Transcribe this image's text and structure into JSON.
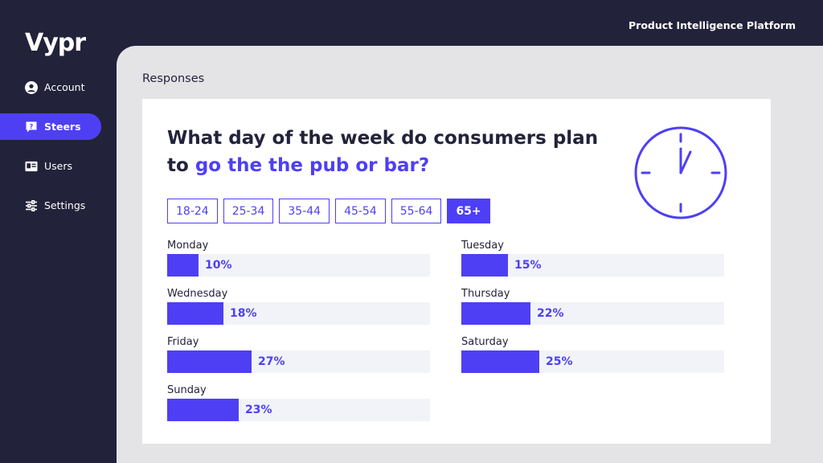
{
  "app": {
    "logo_text": "Vypr",
    "platform_title": "Product Intelligence Platform"
  },
  "sidebar": {
    "items": [
      {
        "label": "Account",
        "icon": "user-circle-icon",
        "active": false
      },
      {
        "label": "Steers",
        "icon": "question-chat-icon",
        "active": true
      },
      {
        "label": "Users",
        "icon": "id-card-icon",
        "active": false
      },
      {
        "label": "Settings",
        "icon": "sliders-icon",
        "active": false
      }
    ]
  },
  "main": {
    "section_title": "Responses",
    "question_prefix": "What day of the week do consumers plan to ",
    "question_highlight": "go the the pub or bar?",
    "clock_icon": "clock-icon",
    "filters": [
      {
        "label": "18-24",
        "selected": false
      },
      {
        "label": "25-34",
        "selected": false
      },
      {
        "label": "35-44",
        "selected": false
      },
      {
        "label": "45-54",
        "selected": false
      },
      {
        "label": "55-64",
        "selected": false
      },
      {
        "label": "65+",
        "selected": true
      }
    ]
  },
  "chart_data": {
    "type": "bar",
    "categories": [
      "Monday",
      "Tuesday",
      "Wednesday",
      "Thursday",
      "Friday",
      "Saturday",
      "Sunday"
    ],
    "values": [
      10,
      15,
      18,
      22,
      27,
      25,
      23
    ],
    "value_labels": [
      "10%",
      "15%",
      "18%",
      "22%",
      "27%",
      "25%",
      "23%"
    ],
    "max": 100
  },
  "colors": {
    "accent": "#4e3ff5",
    "sidebar_bg": "#23223b",
    "content_bg": "#e4e4e6",
    "track_bg": "#f1f3f9"
  }
}
